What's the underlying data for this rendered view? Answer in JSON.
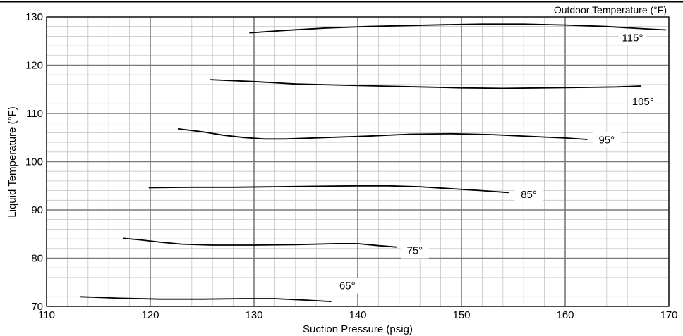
{
  "chart_data": {
    "type": "line",
    "title": "",
    "legend_title": "Outdoor Temperature (°F)",
    "xlabel": "Suction Pressure (psig)",
    "ylabel": "Liquid  Temperature  (°F)",
    "xlim": [
      110,
      170
    ],
    "ylim": [
      70,
      130
    ],
    "x_ticks": [
      "110",
      "120",
      "130",
      "140",
      "150",
      "160",
      "170"
    ],
    "y_ticks": [
      "70",
      "80",
      "90",
      "100",
      "110",
      "120",
      "130"
    ],
    "grid": "major every 10, minor every 2 (x) and 2 (y)",
    "series": [
      {
        "name": "115°",
        "label_pos": [
          166.5,
          125.7
        ],
        "x": [
          129.6,
          133,
          137,
          141,
          145,
          149,
          152,
          156,
          160,
          164,
          167,
          169.7
        ],
        "y": [
          126.7,
          127.2,
          127.7,
          128.0,
          128.2,
          128.4,
          128.5,
          128.5,
          128.3,
          128.0,
          127.6,
          127.3
        ]
      },
      {
        "name": "105°",
        "label_pos": [
          167.5,
          112.5
        ],
        "x": [
          125.8,
          130,
          134,
          138,
          142,
          146,
          150,
          154,
          158,
          162,
          165,
          167.3
        ],
        "y": [
          117.0,
          116.6,
          116.1,
          115.9,
          115.7,
          115.5,
          115.3,
          115.2,
          115.3,
          115.4,
          115.5,
          115.7
        ]
      },
      {
        "name": "95°",
        "label_pos": [
          164,
          104.5
        ],
        "x": [
          122.7,
          125,
          127,
          129,
          131,
          133,
          137,
          141,
          145,
          149,
          153,
          157,
          160,
          162.1
        ],
        "y": [
          106.8,
          106.2,
          105.5,
          105.0,
          104.7,
          104.7,
          105.0,
          105.3,
          105.7,
          105.8,
          105.6,
          105.2,
          104.9,
          104.6
        ]
      },
      {
        "name": "85°",
        "label_pos": [
          156.5,
          93.2
        ],
        "x": [
          119.9,
          124,
          128,
          132,
          136,
          140,
          143,
          146,
          149,
          152,
          154.5
        ],
        "y": [
          94.6,
          94.7,
          94.7,
          94.8,
          94.9,
          95.0,
          95.0,
          94.8,
          94.4,
          94.0,
          93.6
        ]
      },
      {
        "name": "75°",
        "label_pos": [
          145.5,
          81.6
        ],
        "x": [
          117.4,
          119,
          121,
          123,
          126,
          130,
          134,
          138,
          140,
          142,
          143.7
        ],
        "y": [
          84.1,
          83.8,
          83.3,
          82.9,
          82.7,
          82.7,
          82.8,
          83.0,
          83.0,
          82.6,
          82.3
        ]
      },
      {
        "name": "65°",
        "label_pos": [
          139,
          74.3
        ],
        "x": [
          113.3,
          117,
          121,
          125,
          129,
          132,
          135,
          137.4
        ],
        "y": [
          72.0,
          71.7,
          71.5,
          71.5,
          71.6,
          71.6,
          71.3,
          71.0
        ]
      }
    ]
  }
}
